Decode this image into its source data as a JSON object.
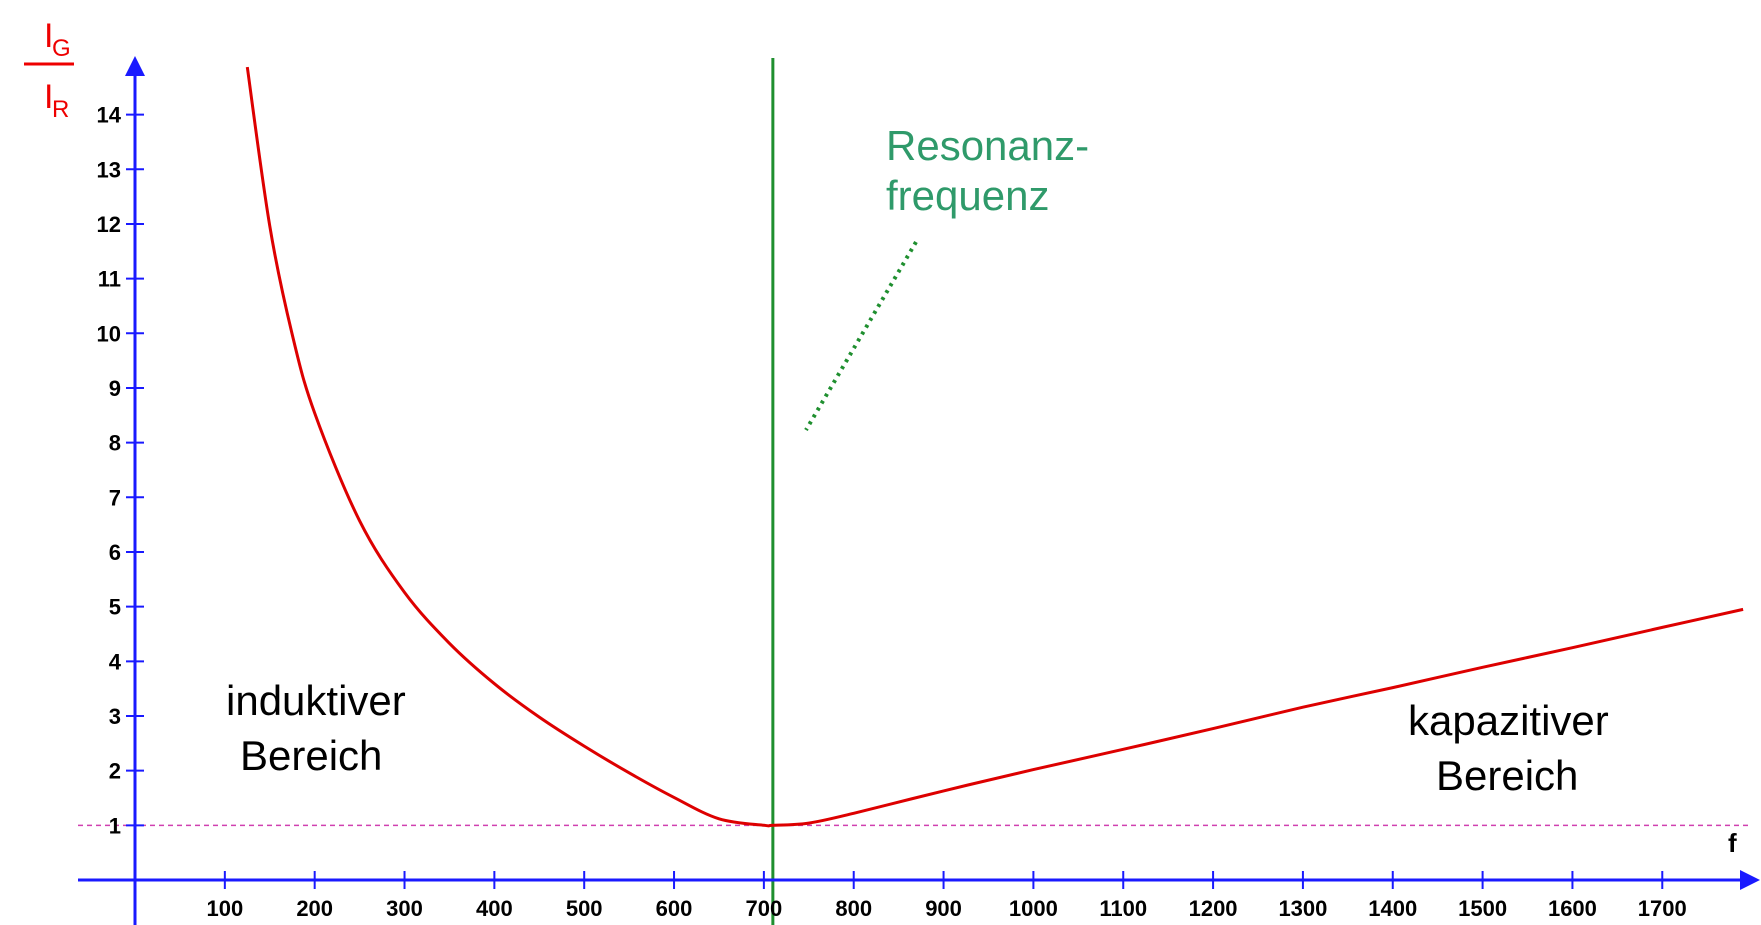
{
  "chart_data": {
    "type": "line",
    "xlabel": "f",
    "ylabel": {
      "numerator": "I",
      "numerator_sub": "G",
      "denominator": "I",
      "denominator_sub": "R"
    },
    "xlim": [
      0,
      1790
    ],
    "ylim": [
      0,
      14.9
    ],
    "x_ticks": [
      "100",
      "200",
      "300",
      "400",
      "500",
      "600",
      "700",
      "800",
      "900",
      "1000",
      "1100",
      "1200",
      "1300",
      "1400",
      "1500",
      "1600",
      "1700"
    ],
    "y_ticks": [
      "1",
      "2",
      "3",
      "4",
      "5",
      "6",
      "7",
      "8",
      "9",
      "10",
      "11",
      "12",
      "13",
      "14"
    ],
    "resonance_frequency": 710,
    "reference_level": 1,
    "series": [
      {
        "x": [
          125,
          150,
          175,
          200,
          250,
          300,
          350,
          400,
          450,
          500,
          550,
          600,
          650,
          700,
          710,
          750,
          800,
          900,
          1000,
          1100,
          1200,
          1300,
          1400,
          1500,
          1600,
          1700,
          1790
        ],
        "y": [
          14.87,
          11.96,
          9.98,
          8.54,
          6.57,
          5.26,
          4.33,
          3.59,
          2.98,
          2.45,
          1.96,
          1.51,
          1.12,
          1.0,
          1.0,
          1.04,
          1.22,
          1.63,
          2.02,
          2.39,
          2.77,
          3.16,
          3.52,
          3.89,
          4.25,
          4.62,
          4.95
        ]
      }
    ],
    "annotations": {
      "resonance_line1": "Resonanz-",
      "resonance_line2": "frequenz",
      "inductive_line1": "induktiver",
      "inductive_line2": "Bereich",
      "capacitive_line1": "kapazitiver",
      "capacitive_line2": "Bereich"
    },
    "colors": {
      "axis": "#1a1aff",
      "curve": "#dd0000",
      "resonance_line": "#1f8f2f",
      "resonance_text": "#2f9a6a",
      "reference_line": "#d040b0",
      "ylabel": "#ee0000"
    }
  }
}
